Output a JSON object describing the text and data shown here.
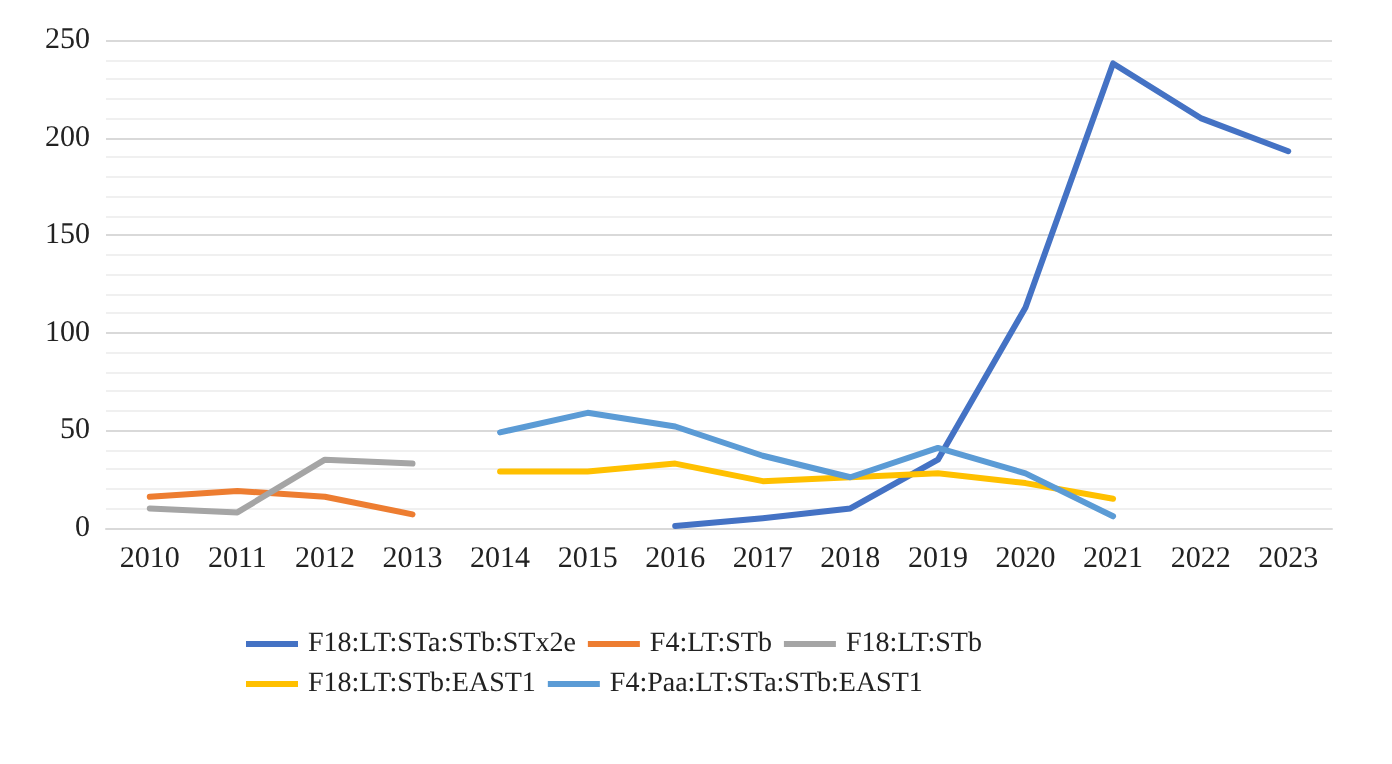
{
  "chart_data": {
    "type": "line",
    "categories": [
      "2010",
      "2011",
      "2012",
      "2013",
      "2014",
      "2015",
      "2016",
      "2017",
      "2018",
      "2019",
      "2020",
      "2021",
      "2022",
      "2023"
    ],
    "series": [
      {
        "name": "F18:LT:STa:STb:STx2e",
        "color": "#4472c4",
        "values": [
          null,
          null,
          null,
          null,
          null,
          null,
          1,
          5,
          10,
          35,
          113,
          238,
          210,
          193
        ]
      },
      {
        "name": "F4:LT:STb",
        "color": "#ed7d31",
        "values": [
          16,
          19,
          16,
          7,
          null,
          null,
          null,
          null,
          null,
          null,
          null,
          null,
          null,
          null
        ]
      },
      {
        "name": "F18:LT:STb",
        "color": "#a5a5a5",
        "values": [
          10,
          8,
          35,
          33,
          null,
          null,
          null,
          null,
          null,
          null,
          null,
          null,
          null,
          null
        ]
      },
      {
        "name": "F18:LT:STb:EAST1",
        "color": "#ffc000",
        "values": [
          null,
          null,
          null,
          null,
          29,
          29,
          33,
          24,
          26,
          28,
          23,
          15,
          null,
          null
        ]
      },
      {
        "name": "F4:Paa:LT:STa:STb:EAST1",
        "color": "#5b9bd5",
        "values": [
          null,
          null,
          null,
          null,
          49,
          59,
          52,
          37,
          26,
          41,
          28,
          6,
          null,
          null
        ]
      }
    ],
    "ylim": [
      0,
      250
    ],
    "yticks": [
      0,
      50,
      100,
      150,
      200,
      250
    ],
    "grid": "y",
    "legend": "bottom",
    "marker": "none",
    "line_style": "solid"
  }
}
